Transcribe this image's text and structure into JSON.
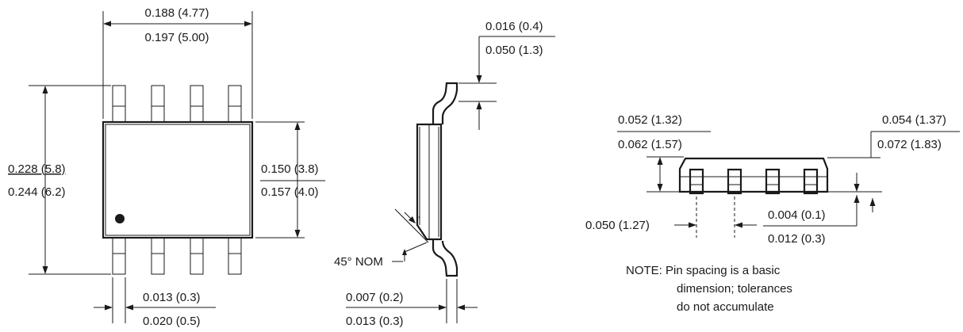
{
  "top_view": {
    "length_min": "0.188 (4.77)",
    "length_max": "0.197 (5.00)",
    "overall_width_min": "0.228 (5.8)",
    "overall_width_max": "0.244 (6.2)",
    "body_width_min": "0.150 (3.8)",
    "body_width_max": "0.157 (4.0)",
    "lead_width_min": "0.013 (0.3)",
    "lead_width_max": "0.020 (0.5)"
  },
  "side_view": {
    "lead_length_min": "0.016 (0.4)",
    "lead_length_max": "0.050 (1.3)",
    "chamfer": "45° NOM",
    "lead_thickness_min": "0.007 (0.2)",
    "lead_thickness_max": "0.013 (0.3)"
  },
  "end_view": {
    "height_min": "0.052 (1.32)",
    "height_max": "0.062 (1.57)",
    "body_height_min": "0.054 (1.37)",
    "body_height_max": "0.072 (1.83)",
    "pitch": "0.050 (1.27)",
    "standoff_min": "0.004 (0.1)",
    "standoff_max": "0.012 (0.3)"
  },
  "note": {
    "line1": "NOTE: Pin spacing is a basic",
    "line2": "dimension; tolerances",
    "line3": "do not accumulate"
  }
}
